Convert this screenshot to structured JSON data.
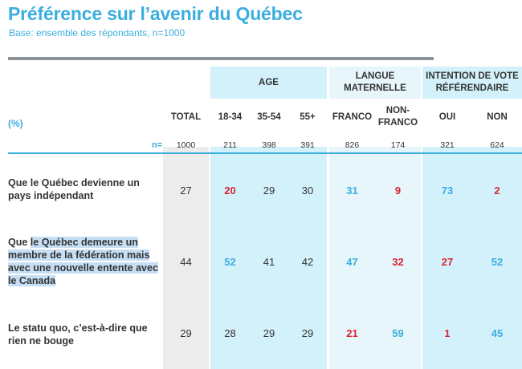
{
  "title": "Préférence sur l’avenir du Québec",
  "subtitle": "Base: ensemble des répondants, n=1000",
  "unit_label": "(%)",
  "groups": {
    "age": "AGE",
    "langue": "LANGUE\nMATERNELLE",
    "vote": "INTENTION DE VOTE\nRÉFÉRENDAIRE"
  },
  "n_label": "n=",
  "colors": {
    "accent": "#3aaedf",
    "highlight_up": "#3aaedf",
    "highlight_down": "#d62535"
  },
  "chart_data": {
    "type": "table",
    "columns": [
      "TOTAL",
      "18-34",
      "35-54",
      "55+",
      "FRANCO",
      "NON-\nFRANCO",
      "OUI",
      "NON"
    ],
    "n": [
      "1000",
      "211",
      "398",
      "391",
      "826",
      "174",
      "321",
      "624"
    ],
    "rows": [
      {
        "label_pre": "",
        "label_hl": "",
        "label_post": "Que le Québec devienne un pays indépendant",
        "values": [
          27,
          20,
          29,
          30,
          31,
          9,
          73,
          2
        ],
        "styles": [
          "",
          "red",
          "",
          "",
          "blue",
          "red",
          "blue",
          "red"
        ]
      },
      {
        "label_pre": "Que ",
        "label_hl": "le Québec demeure un membre de la fédération mais avec une nouvelle entente avec le Canada",
        "label_post": "",
        "values": [
          44,
          52,
          41,
          42,
          47,
          32,
          27,
          52
        ],
        "styles": [
          "",
          "blue",
          "",
          "",
          "blue",
          "red",
          "red",
          "blue"
        ]
      },
      {
        "label_pre": "",
        "label_hl": "",
        "label_post": "Le statu quo, c’est-à-dire que rien ne bouge",
        "values": [
          29,
          28,
          29,
          29,
          21,
          59,
          1,
          45
        ],
        "styles": [
          "",
          "",
          "",
          "",
          "red",
          "blue",
          "red",
          "blue"
        ]
      }
    ]
  }
}
